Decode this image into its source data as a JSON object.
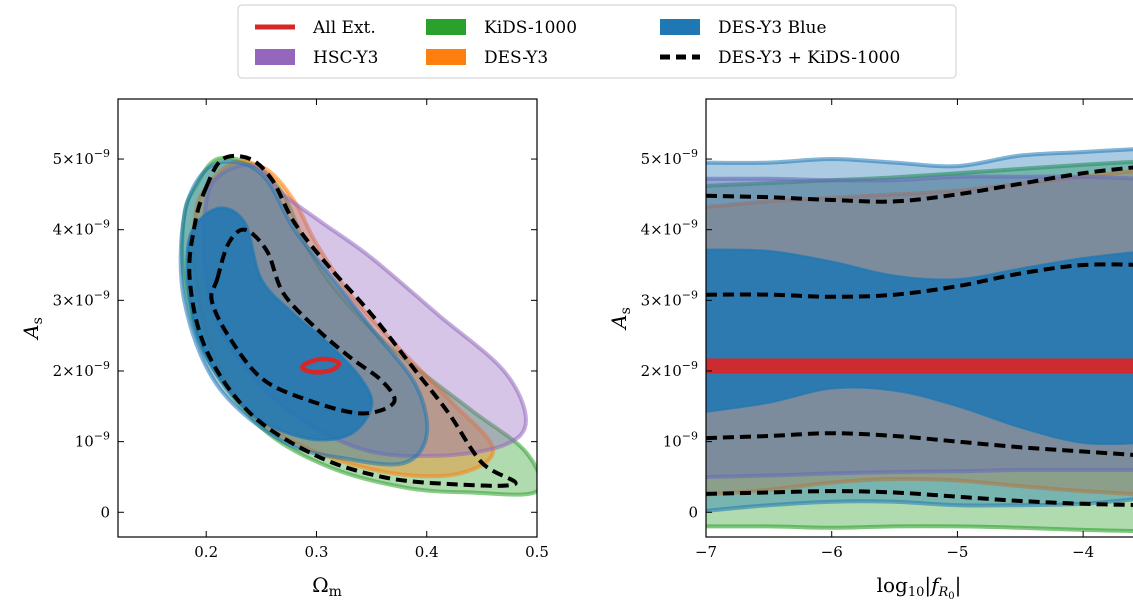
{
  "legend": {
    "placement": "top-center",
    "entries": [
      {
        "label": "All Ext.",
        "color": "#d62728",
        "style": "line"
      },
      {
        "label": "HSC-Y3",
        "color": "#9467bd",
        "style": "patch"
      },
      {
        "label": "KiDS-1000",
        "color": "#2ca02c",
        "style": "patch"
      },
      {
        "label": "DES-Y3",
        "color": "#ff7f0e",
        "style": "patch"
      },
      {
        "label": "DES-Y3 Blue",
        "color": "#1f77b4",
        "style": "patch"
      },
      {
        "label": "DES-Y3 + KiDS-1000",
        "color": "#000000",
        "style": "dashed"
      }
    ]
  },
  "chart_data": [
    {
      "type": "contour",
      "xlabel": "Ω",
      "xlabel_sub": "m",
      "ylabel": "A",
      "ylabel_sub": "s",
      "xlim": [
        0.12,
        0.5
      ],
      "ylim": [
        -3.5e-10,
        5.85e-09
      ],
      "xticks": [
        {
          "value": 0.2,
          "label": "0.2"
        },
        {
          "value": 0.3,
          "label": "0.3"
        },
        {
          "value": 0.4,
          "label": "0.4"
        },
        {
          "value": 0.5,
          "label": "0.5"
        }
      ],
      "yticks": [
        {
          "value": 0,
          "label": "0",
          "exp": ""
        },
        {
          "value": 1e-09,
          "label": "10",
          "exp": "−9"
        },
        {
          "value": 2e-09,
          "label": "2×10",
          "exp": "−9"
        },
        {
          "value": 3e-09,
          "label": "3×10",
          "exp": "−9"
        },
        {
          "value": 4e-09,
          "label": "4×10",
          "exp": "−9"
        },
        {
          "value": 5e-09,
          "label": "5×10",
          "exp": "−9"
        }
      ],
      "series": [
        {
          "name": "KiDS-1000",
          "color": "#2ca02c",
          "kind": "filled",
          "contour_95": [
            [
              0.19,
              4.6
            ],
            [
              0.21,
              5.0
            ],
            [
              0.245,
              4.9
            ],
            [
              0.27,
              4.5
            ],
            [
              0.29,
              3.8
            ],
            [
              0.32,
              3.1
            ],
            [
              0.37,
              2.3
            ],
            [
              0.44,
              1.45
            ],
            [
              0.49,
              0.85
            ],
            [
              0.5,
              0.3
            ],
            [
              0.44,
              0.28
            ],
            [
              0.38,
              0.35
            ],
            [
              0.31,
              0.65
            ],
            [
              0.25,
              1.2
            ],
            [
              0.2,
              2.2
            ],
            [
              0.18,
              3.3
            ],
            [
              0.18,
              4.2
            ]
          ]
        },
        {
          "name": "DES-Y3",
          "color": "#ff7f0e",
          "kind": "filled",
          "contour_95": [
            [
              0.2,
              4.6
            ],
            [
              0.225,
              4.95
            ],
            [
              0.255,
              4.85
            ],
            [
              0.28,
              4.4
            ],
            [
              0.3,
              3.8
            ],
            [
              0.33,
              3.1
            ],
            [
              0.37,
              2.4
            ],
            [
              0.42,
              1.6
            ],
            [
              0.46,
              0.9
            ],
            [
              0.43,
              0.55
            ],
            [
              0.37,
              0.55
            ],
            [
              0.3,
              0.85
            ],
            [
              0.24,
              1.4
            ],
            [
              0.205,
              2.3
            ],
            [
              0.19,
              3.4
            ],
            [
              0.19,
              4.2
            ]
          ]
        },
        {
          "name": "HSC-Y3",
          "color": "#9467bd",
          "kind": "filled",
          "contour_95": [
            [
              0.2,
              4.4
            ],
            [
              0.215,
              4.8
            ],
            [
              0.245,
              4.9
            ],
            [
              0.27,
              4.5
            ],
            [
              0.305,
              4.1
            ],
            [
              0.35,
              3.6
            ],
            [
              0.41,
              2.8
            ],
            [
              0.47,
              2.0
            ],
            [
              0.49,
              1.3
            ],
            [
              0.47,
              0.95
            ],
            [
              0.41,
              0.8
            ],
            [
              0.34,
              0.9
            ],
            [
              0.27,
              1.5
            ],
            [
              0.22,
              2.4
            ],
            [
              0.2,
              3.3
            ]
          ]
        },
        {
          "name": "DES-Y3 Blue",
          "color": "#1f77b4",
          "kind": "filled",
          "contour_68": [
            [
              0.185,
              3.9
            ],
            [
              0.21,
              4.3
            ],
            [
              0.235,
              4.1
            ],
            [
              0.25,
              3.3
            ],
            [
              0.28,
              2.8
            ],
            [
              0.31,
              2.4
            ],
            [
              0.34,
              1.9
            ],
            [
              0.35,
              1.5
            ],
            [
              0.33,
              1.1
            ],
            [
              0.29,
              1.05
            ],
            [
              0.24,
              1.4
            ],
            [
              0.2,
              2.2
            ],
            [
              0.185,
              3.0
            ]
          ],
          "contour_95": [
            [
              0.18,
              4.2
            ],
            [
              0.2,
              4.85
            ],
            [
              0.23,
              4.95
            ],
            [
              0.255,
              4.7
            ],
            [
              0.28,
              4.0
            ],
            [
              0.31,
              3.4
            ],
            [
              0.35,
              2.6
            ],
            [
              0.39,
              1.8
            ],
            [
              0.4,
              1.1
            ],
            [
              0.38,
              0.7
            ],
            [
              0.33,
              0.75
            ],
            [
              0.27,
              1.0
            ],
            [
              0.21,
              1.8
            ],
            [
              0.18,
              3.0
            ]
          ]
        },
        {
          "name": "DES-Y3 + KiDS-1000",
          "color": "#000000",
          "kind": "dashed",
          "contour_68": [
            [
              0.21,
              3.3
            ],
            [
              0.22,
              3.8
            ],
            [
              0.235,
              4.0
            ],
            [
              0.255,
              3.7
            ],
            [
              0.27,
              3.1
            ],
            [
              0.3,
              2.6
            ],
            [
              0.33,
              2.2
            ],
            [
              0.36,
              1.85
            ],
            [
              0.37,
              1.55
            ],
            [
              0.34,
              1.4
            ],
            [
              0.29,
              1.6
            ],
            [
              0.25,
              1.9
            ],
            [
              0.22,
              2.5
            ],
            [
              0.205,
              3.0
            ]
          ],
          "contour_95": [
            [
              0.2,
              4.6
            ],
            [
              0.215,
              5.0
            ],
            [
              0.24,
              5.0
            ],
            [
              0.26,
              4.7
            ],
            [
              0.28,
              4.1
            ],
            [
              0.31,
              3.5
            ],
            [
              0.35,
              2.8
            ],
            [
              0.39,
              2.0
            ],
            [
              0.42,
              1.4
            ],
            [
              0.45,
              0.7
            ],
            [
              0.48,
              0.4
            ],
            [
              0.42,
              0.4
            ],
            [
              0.36,
              0.5
            ],
            [
              0.3,
              0.8
            ],
            [
              0.24,
              1.4
            ],
            [
              0.2,
              2.3
            ],
            [
              0.185,
              3.3
            ],
            [
              0.19,
              4.1
            ]
          ]
        },
        {
          "name": "All Ext.",
          "color": "#d62728",
          "kind": "line",
          "contour_68": [
            [
              0.29,
              2.1
            ],
            [
              0.305,
              2.17
            ],
            [
              0.32,
              2.12
            ],
            [
              0.315,
              2.02
            ],
            [
              0.3,
              1.98
            ],
            [
              0.288,
              2.03
            ]
          ]
        }
      ],
      "y_unit": 1e-09
    },
    {
      "type": "area",
      "xlabel": "log",
      "xlabel_sub": "10",
      "xlabel_abs": "|f",
      "xlabel_abs_sub": "R",
      "xlabel_abs_subsub": "0",
      "xlabel_close": "|",
      "ylabel": "A",
      "ylabel_sub": "s",
      "xlim": [
        -7,
        -3.5
      ],
      "ylim": [
        -3.5e-10,
        5.85e-09
      ],
      "xticks": [
        {
          "value": -7,
          "label": "−7"
        },
        {
          "value": -6,
          "label": "−6"
        },
        {
          "value": -5,
          "label": "−5"
        },
        {
          "value": -4,
          "label": "−4"
        }
      ],
      "yticks": [
        {
          "value": 0,
          "label": "0",
          "exp": ""
        },
        {
          "value": 1e-09,
          "label": "10",
          "exp": "−9"
        },
        {
          "value": 2e-09,
          "label": "2×10",
          "exp": "−9"
        },
        {
          "value": 3e-09,
          "label": "3×10",
          "exp": "−9"
        },
        {
          "value": 4e-09,
          "label": "4×10",
          "exp": "−9"
        },
        {
          "value": 5e-09,
          "label": "5×10",
          "exp": "−9"
        }
      ],
      "x": [
        -7,
        -6.5,
        -6,
        -5.5,
        -5,
        -4.5,
        -4,
        -3.5
      ],
      "series": [
        {
          "name": "KiDS-1000",
          "color": "#2ca02c",
          "upper": [
            4.62,
            4.66,
            4.7,
            4.74,
            4.8,
            4.86,
            4.92,
            4.97
          ],
          "lower": [
            -0.2,
            -0.2,
            -0.22,
            -0.2,
            -0.2,
            -0.22,
            -0.25,
            -0.27
          ]
        },
        {
          "name": "DES-Y3",
          "color": "#ff7f0e",
          "upper": [
            4.32,
            4.4,
            4.45,
            4.5,
            4.55,
            4.65,
            4.75,
            4.85
          ],
          "lower": [
            0.25,
            0.32,
            0.42,
            0.47,
            0.45,
            0.37,
            0.3,
            0.25
          ]
        },
        {
          "name": "HSC-Y3",
          "color": "#9467bd",
          "upper": [
            4.72,
            4.72,
            4.7,
            4.7,
            4.75,
            4.75,
            4.75,
            4.72
          ],
          "lower": [
            0.5,
            0.52,
            0.55,
            0.57,
            0.58,
            0.6,
            0.6,
            0.6
          ]
        },
        {
          "name": "DES-Y3 Blue",
          "color": "#1f77b4",
          "upper95": [
            4.95,
            4.95,
            5.0,
            4.95,
            4.9,
            5.05,
            5.1,
            5.15
          ],
          "lower95": [
            0.02,
            0.1,
            0.15,
            0.15,
            0.1,
            0.1,
            0.12,
            0.2
          ],
          "upper68": [
            3.72,
            3.7,
            3.55,
            3.35,
            3.3,
            3.45,
            3.6,
            3.7
          ],
          "lower68": [
            1.42,
            1.55,
            1.75,
            1.72,
            1.5,
            1.2,
            0.98,
            0.98
          ]
        },
        {
          "name": "DES-Y3 + KiDS-1000",
          "color": "#000000",
          "upper95": [
            4.48,
            4.46,
            4.42,
            4.4,
            4.5,
            4.65,
            4.8,
            4.9
          ],
          "lower95": [
            0.26,
            0.28,
            0.3,
            0.28,
            0.22,
            0.16,
            0.12,
            0.1
          ],
          "upper68": [
            3.08,
            3.08,
            3.05,
            3.08,
            3.2,
            3.38,
            3.5,
            3.5
          ],
          "lower68": [
            1.05,
            1.08,
            1.12,
            1.08,
            1.0,
            0.92,
            0.86,
            0.8
          ]
        },
        {
          "name": "All Ext.",
          "color": "#d62728",
          "center": [
            2.07,
            2.07,
            2.07,
            2.07,
            2.07,
            2.07,
            2.07,
            2.07
          ],
          "halfwidth": 0.1
        }
      ],
      "y_unit": 1e-09
    }
  ]
}
